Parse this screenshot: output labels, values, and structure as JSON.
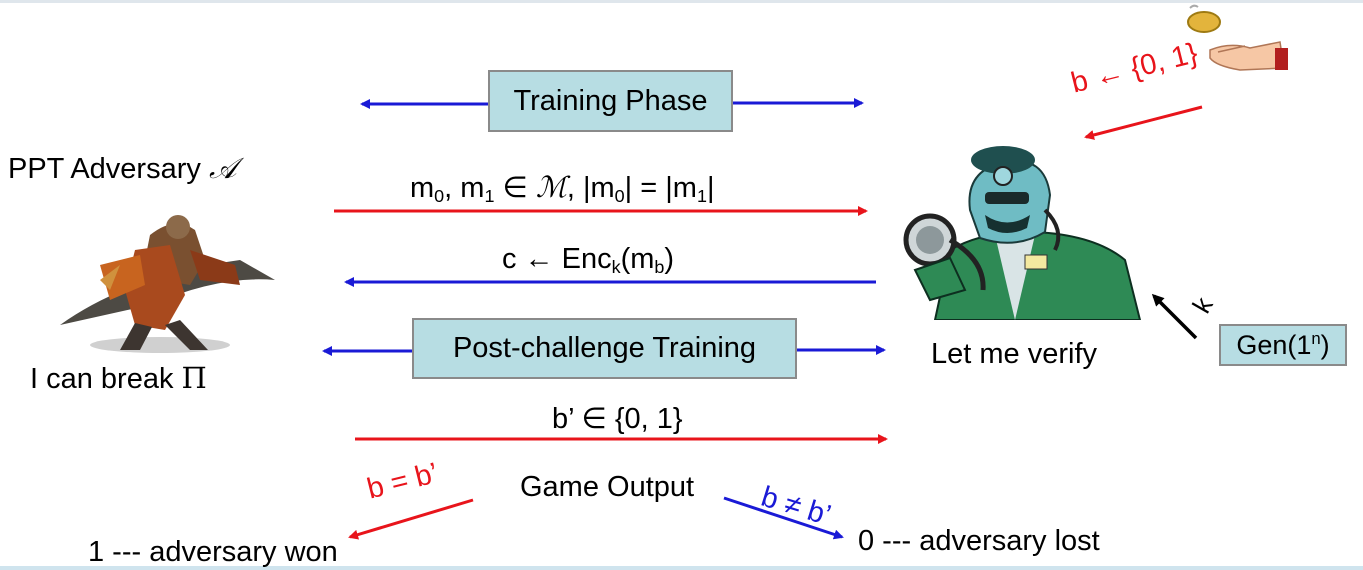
{
  "boxes": {
    "training_phase": "Training Phase",
    "post_challenge": "Post-challenge Training",
    "gen_prefix": "Gen(1",
    "gen_sup": "n",
    "gen_suffix": ")"
  },
  "adversary": {
    "title_prefix": "PPT Adversary ",
    "title_symbol": "𝒜",
    "caption_prefix": "I can break ",
    "caption_symbol": "Π"
  },
  "verifier": {
    "caption": "Let me verify"
  },
  "messages": {
    "msg_m0": "m",
    "msg_sub0": "0",
    "msg_m1": ", m",
    "msg_sub1": "1",
    "msg_in": " ∈ ",
    "msg_space": "ℳ",
    "msg_eq_a": ", |m",
    "msg_sub0b": "0",
    "msg_eq_b": "| = |m",
    "msg_sub1b": "1",
    "msg_eq_c": "|",
    "cipher_a": "c ← Enc",
    "cipher_sub_k": "k",
    "cipher_b": "(m",
    "cipher_sub_b": "b",
    "cipher_c": ")",
    "guess": "b’ ∈ {0, 1}"
  },
  "coin": {
    "label": "b ← {0, 1}"
  },
  "key": {
    "label": "k"
  },
  "output": {
    "game_output": "Game Output",
    "win_condition": "b = b’",
    "lose_condition": "b ≠ b’",
    "won": "1 --- adversary won",
    "lost": "0 --- adversary lost"
  },
  "colors": {
    "red": "#e8141b",
    "blue": "#1a1ad6",
    "box_fill": "#b7dde3"
  }
}
